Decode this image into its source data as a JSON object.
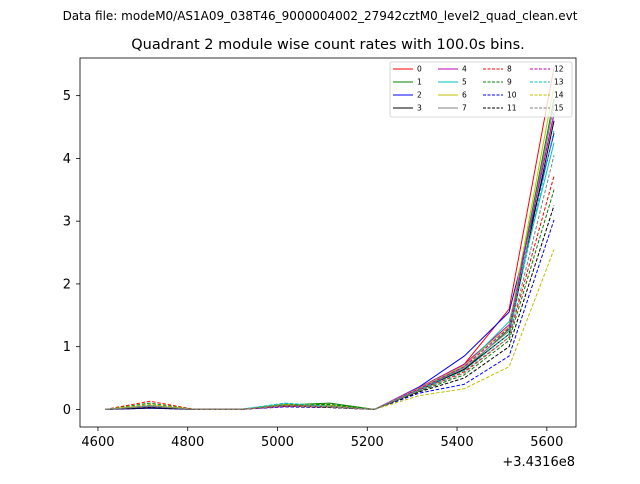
{
  "header": {
    "subtitle": "Data file: modeM0/AS1A09_038T46_9000004002_27942cztM0_level2_quad_clean.evt"
  },
  "chart_data": {
    "type": "line",
    "title": "Quadrant 2 module wise count rates with 100.0s bins.",
    "xlabel": "",
    "ylabel": "",
    "x_offset_label": "+3.4316e8",
    "x": [
      4616,
      4716,
      4816,
      4916,
      5016,
      5116,
      5216,
      5316,
      5416,
      5516,
      5616
    ],
    "xlim": [
      4560,
      5665
    ],
    "ylim": [
      -0.28,
      5.6
    ],
    "x_ticks": [
      4600,
      4800,
      5000,
      5200,
      5400,
      5600
    ],
    "y_ticks": [
      0,
      1,
      2,
      3,
      4,
      5
    ],
    "grid": false,
    "legend": {
      "placement": "top-right",
      "columns": 4
    },
    "series": [
      {
        "name": "0",
        "color": "#ff0000",
        "dash": "solid",
        "values": [
          0,
          0.06,
          0,
          0,
          0.05,
          0.04,
          0,
          0.34,
          0.72,
          1.6,
          5.45
        ]
      },
      {
        "name": "1",
        "color": "#008000",
        "dash": "solid",
        "values": [
          0,
          0.05,
          0,
          0,
          0.07,
          0.1,
          0,
          0.33,
          0.63,
          1.28,
          4.95
        ]
      },
      {
        "name": "2",
        "color": "#0000ff",
        "dash": "solid",
        "values": [
          0,
          0.03,
          0,
          0,
          0.06,
          0.05,
          0,
          0.36,
          0.85,
          1.55,
          4.4
        ]
      },
      {
        "name": "3",
        "color": "#000000",
        "dash": "solid",
        "values": [
          0,
          0.02,
          0,
          0,
          0.05,
          0.04,
          0,
          0.31,
          0.64,
          1.2,
          4.6
        ]
      },
      {
        "name": "4",
        "color": "#bf00bf",
        "dash": "solid",
        "values": [
          0,
          0.04,
          0,
          0,
          0.05,
          0.05,
          0,
          0.35,
          0.72,
          1.35,
          4.7
        ]
      },
      {
        "name": "5",
        "color": "#00bfbf",
        "dash": "solid",
        "values": [
          0,
          0.05,
          0,
          0,
          0.09,
          0.06,
          0,
          0.33,
          0.68,
          1.4,
          4.25
        ]
      },
      {
        "name": "6",
        "color": "#bfbf00",
        "dash": "solid",
        "values": [
          0,
          0.06,
          0,
          0,
          0.08,
          0.07,
          0,
          0.34,
          0.7,
          1.32,
          5.15
        ]
      },
      {
        "name": "7",
        "color": "#808080",
        "dash": "solid",
        "values": [
          0,
          0.05,
          0,
          0,
          0.07,
          0.05,
          0,
          0.32,
          0.66,
          1.25,
          4.85
        ]
      },
      {
        "name": "8",
        "color": "#ff0000",
        "dash": "dashed",
        "values": [
          0,
          0.13,
          0,
          0,
          0.06,
          0.05,
          0,
          0.3,
          0.6,
          1.15,
          3.72
        ]
      },
      {
        "name": "9",
        "color": "#008000",
        "dash": "dashed",
        "values": [
          0,
          0.1,
          0,
          0,
          0.07,
          0.08,
          0,
          0.29,
          0.55,
          1.1,
          3.5
        ]
      },
      {
        "name": "10",
        "color": "#0000ff",
        "dash": "dashed",
        "values": [
          0,
          0.02,
          0,
          0,
          0.04,
          0.03,
          0,
          0.26,
          0.4,
          0.85,
          3.02
        ]
      },
      {
        "name": "11",
        "color": "#000000",
        "dash": "dashed",
        "values": [
          0,
          0.03,
          0,
          0,
          0.05,
          0.03,
          0,
          0.28,
          0.5,
          1.0,
          3.25
        ]
      },
      {
        "name": "12",
        "color": "#bf00bf",
        "dash": "dashed",
        "values": [
          0,
          0.07,
          0,
          0,
          0.05,
          0.04,
          0,
          0.33,
          0.68,
          1.3,
          4.72
        ]
      },
      {
        "name": "13",
        "color": "#00bfbf",
        "dash": "dashed",
        "values": [
          0,
          0.06,
          0,
          0,
          0.1,
          0.05,
          0,
          0.31,
          0.62,
          1.2,
          4.45
        ]
      },
      {
        "name": "14",
        "color": "#bfbf00",
        "dash": "dashed",
        "values": [
          0,
          0.08,
          0,
          0,
          0.06,
          0.04,
          0,
          0.22,
          0.33,
          0.68,
          2.55
        ]
      },
      {
        "name": "15",
        "color": "#808080",
        "dash": "dashed",
        "values": [
          0,
          0.05,
          0,
          0,
          0.06,
          0.04,
          0,
          0.3,
          0.58,
          1.15,
          4.05
        ]
      }
    ]
  }
}
